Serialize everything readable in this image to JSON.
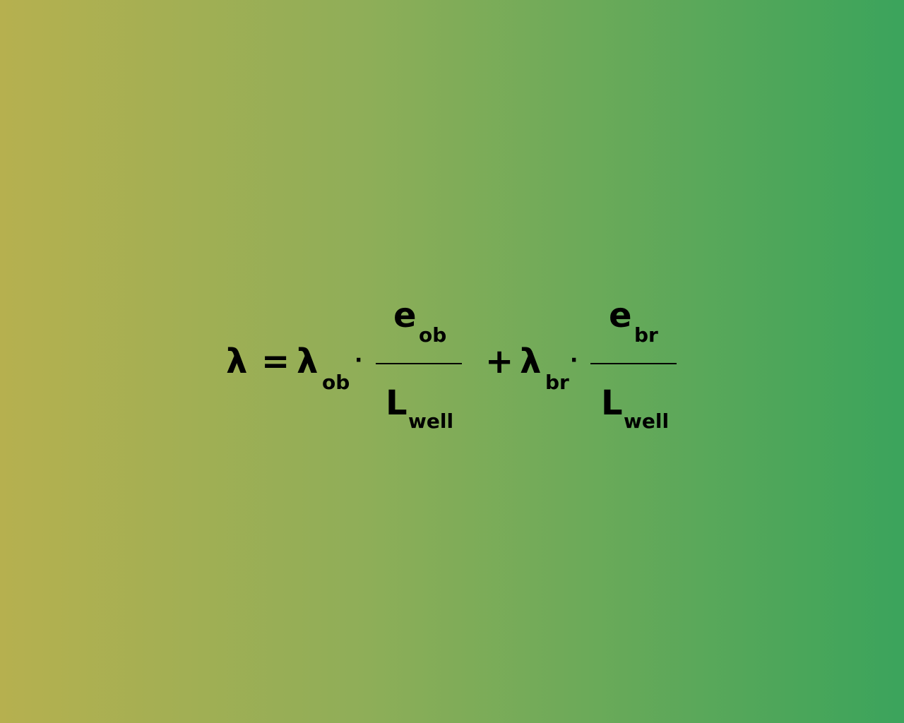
{
  "formula": {
    "lhs": "λ",
    "equals": "=",
    "term1": {
      "coef": "λ",
      "coef_sub": "ob",
      "dot": "·",
      "num": "e",
      "num_sub": "ob",
      "den": "L",
      "den_sub": "well"
    },
    "plus": "+",
    "term2": {
      "coef": "λ",
      "coef_sub": "br",
      "dot": "·",
      "num": "e",
      "num_sub": "br",
      "den": "L",
      "den_sub": "well"
    }
  },
  "colors": {
    "background_left": "#b6b04f",
    "background_right": "#3ba45c",
    "text": "#000000"
  }
}
